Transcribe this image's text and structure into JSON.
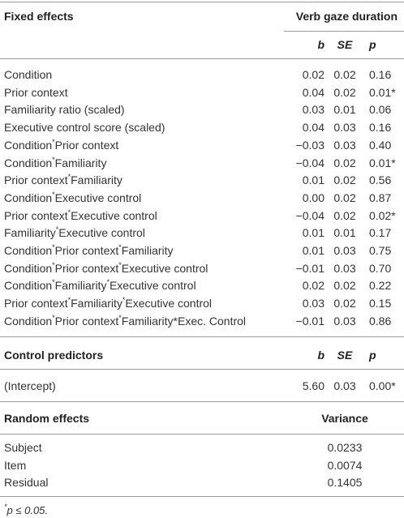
{
  "fixed_effects": {
    "heading": "Fixed effects",
    "group_heading": "Verb gaze duration",
    "columns": [
      "b",
      "SE",
      "p"
    ],
    "rows": [
      {
        "label_parts": [
          "Condition"
        ],
        "cells": [
          "0.02",
          "0.02",
          "0.16"
        ]
      },
      {
        "label_parts": [
          "Prior context"
        ],
        "cells": [
          "0.04",
          "0.02",
          "0.01*"
        ]
      },
      {
        "label_parts": [
          "Familiarity ratio (scaled)"
        ],
        "cells": [
          "0.03",
          "0.01",
          "0.06"
        ]
      },
      {
        "label_parts": [
          "Executive control score (scaled)"
        ],
        "cells": [
          "0.04",
          "0.03",
          "0.16"
        ]
      },
      {
        "label_parts": [
          "Condition",
          "*",
          "Prior context"
        ],
        "cells": [
          "−0.03",
          "0.03",
          "0.40"
        ]
      },
      {
        "label_parts": [
          "Condition",
          "*",
          "Familiarity"
        ],
        "cells": [
          "−0.04",
          "0.02",
          "0.01*"
        ]
      },
      {
        "label_parts": [
          "Prior context",
          "*",
          "Familiarity"
        ],
        "cells": [
          "0.01",
          "0.02",
          "0.56"
        ]
      },
      {
        "label_parts": [
          "Condition",
          "*",
          "Executive control"
        ],
        "cells": [
          "0.00",
          "0.02",
          "0.87"
        ]
      },
      {
        "label_parts": [
          "Prior context",
          "*",
          "Executive control"
        ],
        "cells": [
          "−0.04",
          "0.02",
          "0.02*"
        ]
      },
      {
        "label_parts": [
          "Familiarity",
          "*",
          "Executive control"
        ],
        "cells": [
          "0.01",
          "0.01",
          "0.17"
        ]
      },
      {
        "label_parts": [
          "Condition",
          "*",
          "Prior context",
          "*",
          "Familiarity"
        ],
        "cells": [
          "0.01",
          "0.03",
          "0.75"
        ]
      },
      {
        "label_parts": [
          "Condition",
          "*",
          "Prior context",
          "*",
          "Executive control"
        ],
        "cells": [
          "−0.01",
          "0.03",
          "0.70"
        ]
      },
      {
        "label_parts": [
          "Condition",
          "*",
          "Familiarity",
          "*",
          "Executive control"
        ],
        "cells": [
          "0.02",
          "0.02",
          "0.22"
        ]
      },
      {
        "label_parts": [
          "Prior context",
          "*",
          "Familiarity",
          "*",
          "Executive control"
        ],
        "cells": [
          "0.03",
          "0.02",
          "0.15"
        ]
      },
      {
        "label_parts": [
          "Condition",
          "*",
          "Prior context",
          "*",
          "Familiarity*Exec. Control"
        ],
        "cells": [
          "−0.01",
          "0.03",
          "0.86"
        ]
      }
    ]
  },
  "control_predictors": {
    "heading": "Control predictors",
    "columns": [
      "b",
      "SE",
      "p"
    ],
    "rows": [
      {
        "label_parts": [
          "(Intercept)"
        ],
        "cells": [
          "5.60",
          "0.03",
          "0.00*"
        ]
      }
    ]
  },
  "random_effects": {
    "heading": "Random effects",
    "columns": [
      "Variance"
    ],
    "rows": [
      {
        "label_parts": [
          "Subject"
        ],
        "cells": [
          "0.0233"
        ]
      },
      {
        "label_parts": [
          "Item"
        ],
        "cells": [
          "0.0074"
        ]
      },
      {
        "label_parts": [
          "Residual"
        ],
        "cells": [
          "0.1405"
        ]
      }
    ]
  },
  "footnote": [
    "*",
    "p ≤ 0.05."
  ]
}
